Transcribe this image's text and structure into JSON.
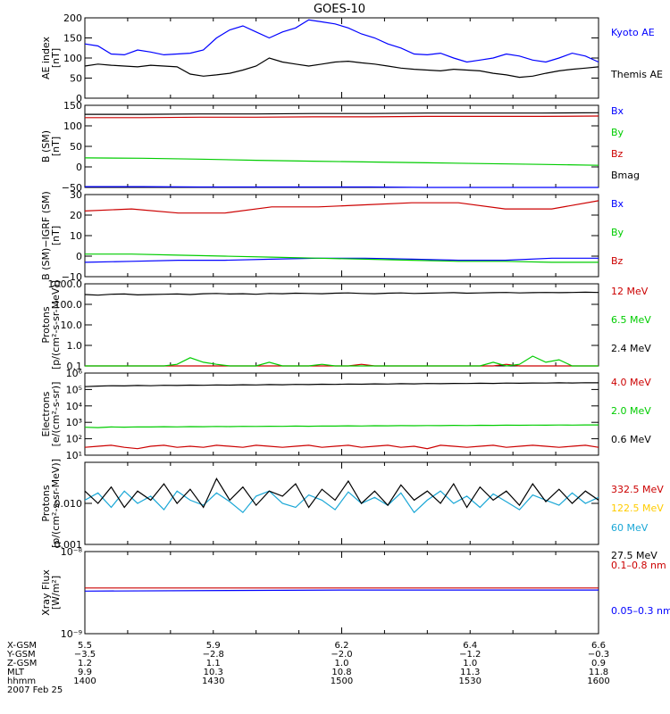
{
  "colors": {
    "black": "#000000",
    "blue": "#0000ff",
    "red": "#cc0000",
    "green": "#00cc00",
    "cyan": "#1aa7d6",
    "yellow": "#ffcc00"
  },
  "chart_data": [
    {
      "type": "line",
      "title": "GOES-10",
      "ylabel": [
        "AE index",
        "[nT]"
      ],
      "ylim": [
        0,
        200
      ],
      "yticks": [
        0,
        50,
        100,
        150,
        200
      ],
      "ytick_labels": [
        "0",
        "50",
        "100",
        "150",
        "200"
      ],
      "scale": "linear",
      "series": [
        {
          "name": "Kyoto AE",
          "color": "blue",
          "values": [
            135,
            130,
            110,
            108,
            120,
            115,
            108,
            110,
            112,
            120,
            150,
            170,
            180,
            165,
            150,
            165,
            175,
            195,
            190,
            185,
            175,
            160,
            150,
            135,
            125,
            110,
            108,
            112,
            100,
            90,
            95,
            100,
            110,
            105,
            95,
            90,
            100,
            112,
            105,
            90
          ]
        },
        {
          "name": "Themis AE",
          "color": "black",
          "values": [
            80,
            85,
            82,
            80,
            78,
            82,
            80,
            78,
            60,
            55,
            58,
            62,
            70,
            80,
            100,
            90,
            85,
            80,
            85,
            90,
            92,
            88,
            85,
            80,
            75,
            72,
            70,
            68,
            72,
            70,
            68,
            62,
            58,
            52,
            55,
            62,
            68,
            72,
            75,
            78
          ]
        }
      ]
    },
    {
      "type": "line",
      "ylabel": [
        "B (SM)",
        "[nT]"
      ],
      "ylim": [
        -50,
        150
      ],
      "yticks": [
        -50,
        0,
        50,
        100,
        150
      ],
      "ytick_labels": [
        "−50",
        "0",
        "50",
        "100",
        "150"
      ],
      "scale": "linear",
      "series": [
        {
          "name": "Bx",
          "color": "blue",
          "values": [
            -48,
            -48,
            -49,
            -49,
            -49,
            -49,
            -50,
            -50,
            -50,
            -50
          ]
        },
        {
          "name": "By",
          "color": "green",
          "values": [
            22,
            21,
            19,
            16,
            14,
            12,
            10,
            8,
            6,
            4
          ]
        },
        {
          "name": "Bz",
          "color": "red",
          "values": [
            120,
            120,
            121,
            121,
            122,
            122,
            123,
            123,
            123,
            124
          ]
        },
        {
          "name": "Bmag",
          "color": "black",
          "values": [
            128,
            128,
            129,
            129,
            130,
            130,
            131,
            131,
            131,
            132
          ]
        }
      ]
    },
    {
      "type": "line",
      "ylabel": [
        "B (SM)−IGRF (SM)",
        "[nT]"
      ],
      "ylim": [
        -10,
        30
      ],
      "yticks": [
        -10,
        0,
        10,
        20,
        30
      ],
      "ytick_labels": [
        "−10",
        "0",
        "10",
        "20",
        "30"
      ],
      "scale": "linear",
      "series": [
        {
          "name": "Bx",
          "color": "blue",
          "values": [
            -3,
            -2.5,
            -2,
            -2,
            -1.5,
            -1,
            -1,
            -1.5,
            -2,
            -2,
            -1,
            -1
          ]
        },
        {
          "name": "By",
          "color": "green",
          "values": [
            1,
            1,
            0.5,
            0,
            -0.5,
            -1,
            -1.5,
            -2,
            -2.5,
            -2.5,
            -3,
            -3
          ]
        },
        {
          "name": "Bz",
          "color": "red",
          "values": [
            22,
            23,
            21,
            21,
            24,
            24,
            25,
            26,
            26,
            23,
            23,
            27
          ]
        }
      ]
    },
    {
      "type": "line",
      "ylabel": [
        "Protons",
        "[p/(cm²-s-sr-MeV)]"
      ],
      "ylim": [
        0.1,
        1000
      ],
      "yticks": [
        0.1,
        1,
        10,
        100,
        1000
      ],
      "ytick_labels": [
        "0.1",
        "1.0",
        "10.0",
        "100.0",
        "1000.0"
      ],
      "scale": "log",
      "series": [
        {
          "name": "12 MeV",
          "color": "red",
          "values": [
            0.1,
            0.1,
            0.1,
            0.1,
            0.1,
            0.1,
            0.1,
            0.1,
            0.1,
            0.1,
            0.1,
            0.1,
            0.1,
            0.1,
            0.1,
            0.1,
            0.1,
            0.1,
            0.1,
            0.1,
            0.1,
            0.12,
            0.1,
            0.1,
            0.1,
            0.1,
            0.1,
            0.1,
            0.1,
            0.1,
            0.1,
            0.1,
            0.12,
            0.1,
            0.1,
            0.1,
            0.1,
            0.1,
            0.1,
            0.1
          ]
        },
        {
          "name": "6.5 MeV",
          "color": "green",
          "values": [
            0.1,
            0.1,
            0.1,
            0.1,
            0.1,
            0.1,
            0.1,
            0.12,
            0.25,
            0.15,
            0.12,
            0.1,
            0.1,
            0.1,
            0.15,
            0.1,
            0.1,
            0.1,
            0.12,
            0.1,
            0.1,
            0.1,
            0.1,
            0.1,
            0.1,
            0.1,
            0.1,
            0.1,
            0.1,
            0.1,
            0.1,
            0.15,
            0.1,
            0.12,
            0.3,
            0.15,
            0.2,
            0.1,
            0.1,
            0.1
          ]
        },
        {
          "name": "2.4 MeV",
          "color": "black",
          "values": [
            300,
            280,
            310,
            320,
            290,
            300,
            310,
            320,
            300,
            330,
            340,
            320,
            330,
            310,
            340,
            330,
            350,
            340,
            330,
            350,
            360,
            340,
            330,
            350,
            360,
            340,
            350,
            360,
            370,
            350,
            360,
            370,
            380,
            360,
            370,
            380,
            370,
            380,
            390,
            380
          ]
        }
      ]
    },
    {
      "type": "line",
      "ylabel": [
        "Electrons",
        "[e/(cm²-s-sr)]"
      ],
      "ylim": [
        10,
        1000000
      ],
      "yticks": [
        10,
        100,
        1000,
        10000,
        100000,
        1000000
      ],
      "ytick_labels": [
        "10¹",
        "10²",
        "10³",
        "10⁴",
        "10⁵",
        "10⁶"
      ],
      "scale": "log",
      "series": [
        {
          "name": "4.0 MeV",
          "color": "red",
          "values": [
            30,
            35,
            40,
            30,
            25,
            35,
            40,
            30,
            35,
            30,
            40,
            35,
            30,
            40,
            35,
            30,
            35,
            40,
            30,
            35,
            40,
            30,
            35,
            40,
            30,
            35,
            25,
            40,
            35,
            30,
            35,
            40,
            30,
            35,
            40,
            35,
            30,
            35,
            40,
            30
          ]
        },
        {
          "name": "2.0 MeV",
          "color": "green",
          "values": [
            500,
            480,
            520,
            510,
            530,
            520,
            540,
            530,
            550,
            540,
            560,
            550,
            570,
            560,
            580,
            570,
            590,
            580,
            600,
            590,
            610,
            600,
            620,
            610,
            630,
            620,
            640,
            630,
            650,
            640,
            660,
            650,
            670,
            660,
            680,
            670,
            690,
            680,
            700,
            700
          ]
        },
        {
          "name": "0.6 MeV",
          "color": "black",
          "values": [
            150000,
            160000,
            170000,
            165000,
            175000,
            170000,
            180000,
            175000,
            185000,
            180000,
            190000,
            185000,
            195000,
            190000,
            200000,
            195000,
            205000,
            200000,
            210000,
            205000,
            215000,
            210000,
            220000,
            215000,
            225000,
            220000,
            230000,
            225000,
            235000,
            230000,
            240000,
            235000,
            245000,
            240000,
            250000,
            245000,
            255000,
            250000,
            260000,
            255000
          ]
        }
      ]
    },
    {
      "type": "line",
      "ylabel": [
        "Protons",
        "[p/(cm²-s-sr-MeV)]"
      ],
      "ylim": [
        0.001,
        0.1
      ],
      "yticks": [
        0.001,
        0.01
      ],
      "ytick_labels": [
        "0.001",
        "0.010"
      ],
      "scale": "log",
      "series": [
        {
          "name": "332.5 MeV",
          "color": "red",
          "values": []
        },
        {
          "name": "122.5 MeV",
          "color": "yellow",
          "values": []
        },
        {
          "name": "60 MeV",
          "color": "cyan",
          "values": [
            0.012,
            0.018,
            0.008,
            0.02,
            0.01,
            0.015,
            0.007,
            0.02,
            0.012,
            0.009,
            0.018,
            0.011,
            0.006,
            0.015,
            0.02,
            0.01,
            0.008,
            0.016,
            0.012,
            0.007,
            0.019,
            0.01,
            0.014,
            0.009,
            0.018,
            0.006,
            0.012,
            0.02,
            0.01,
            0.015,
            0.008,
            0.017,
            0.011,
            0.007,
            0.016,
            0.012,
            0.009,
            0.018,
            0.01,
            0.014
          ]
        },
        {
          "name": "27.5 MeV",
          "color": "black",
          "values": [
            0.02,
            0.01,
            0.025,
            0.008,
            0.02,
            0.012,
            0.03,
            0.01,
            0.022,
            0.008,
            0.04,
            0.012,
            0.025,
            0.009,
            0.02,
            0.015,
            0.03,
            0.008,
            0.022,
            0.012,
            0.035,
            0.01,
            0.02,
            0.009,
            0.028,
            0.012,
            0.02,
            0.01,
            0.03,
            0.008,
            0.025,
            0.012,
            0.02,
            0.009,
            0.03,
            0.011,
            0.022,
            0.01,
            0.02,
            0.012
          ]
        }
      ]
    },
    {
      "type": "line",
      "ylabel": [
        "Xray Flux",
        "[W/m²]"
      ],
      "ylim": [
        1e-09,
        1e-08
      ],
      "yticks": [
        1e-09,
        1e-08
      ],
      "ytick_labels": [
        "10⁻⁹",
        "10⁻⁸"
      ],
      "scale": "log",
      "series": [
        {
          "name": "0.1–0.8 nm",
          "color": "red",
          "values": [
            3.6e-09,
            3.6e-09
          ]
        },
        {
          "name": "0.05–0.3 nm",
          "color": "blue",
          "values": [
            3.3e-09,
            3.4e-09,
            3.4e-09
          ]
        }
      ]
    }
  ],
  "x_axis": {
    "times_hhmm": [
      1400,
      1430,
      1500,
      1530,
      1600
    ],
    "rows": [
      {
        "label": "X-GSM",
        "values": [
          "5.5",
          "5.9",
          "6.2",
          "6.4",
          "6.6"
        ]
      },
      {
        "label": "Y-GSM",
        "values": [
          "−3.5",
          "−2.8",
          "−2.0",
          "−1.2",
          "−0.3"
        ]
      },
      {
        "label": "Z-GSM",
        "values": [
          "1.2",
          "1.1",
          "1.0",
          "1.0",
          "0.9"
        ]
      },
      {
        "label": "MLT",
        "values": [
          "9.9",
          "10.3",
          "10.8",
          "11.3",
          "11.8"
        ]
      },
      {
        "label": "hhmm",
        "values": [
          "1400",
          "1430",
          "1500",
          "1530",
          "1600"
        ]
      }
    ],
    "date": "2007 Feb 25"
  }
}
